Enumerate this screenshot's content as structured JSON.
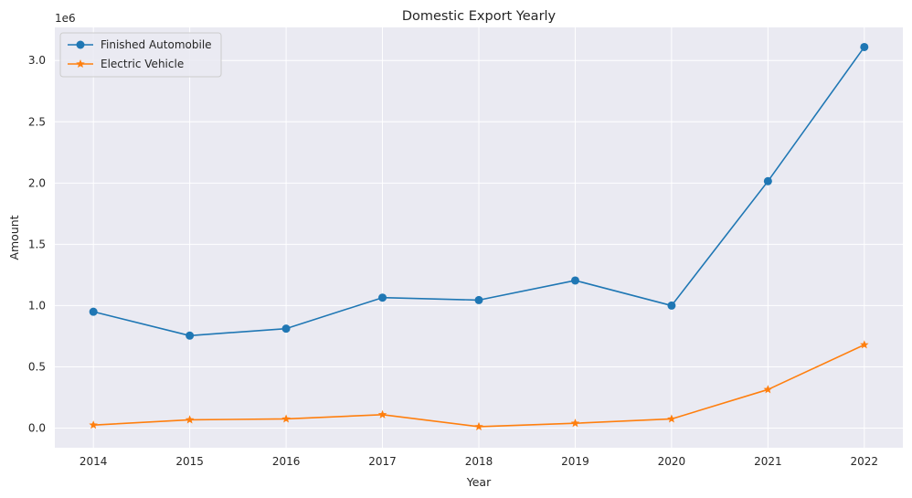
{
  "chart_data": {
    "type": "line",
    "title": "Domestic Export Yearly",
    "xlabel": "Year",
    "ylabel": "Amount",
    "y_offset_label": "1e6",
    "x": [
      2014,
      2015,
      2016,
      2017,
      2018,
      2019,
      2020,
      2021,
      2022
    ],
    "x_tick_labels": [
      "2014",
      "2015",
      "2016",
      "2017",
      "2018",
      "2019",
      "2020",
      "2021",
      "2022"
    ],
    "y_ticks": [
      0.0,
      0.5,
      1.0,
      1.5,
      2.0,
      2.5,
      3.0
    ],
    "y_tick_labels": [
      "0.0",
      "0.5",
      "1.0",
      "1.5",
      "2.0",
      "2.5",
      "3.0"
    ],
    "y_tick_multiplier": 1000000,
    "ylim": [
      -160000,
      3270000
    ],
    "xlim": [
      2013.6,
      2022.4
    ],
    "grid": true,
    "legend_position": "top-left",
    "series": [
      {
        "name": "Finished Automobile",
        "color": "#1f77b4",
        "marker": "circle",
        "values": [
          950000,
          755000,
          812000,
          1065000,
          1045000,
          1205000,
          1000000,
          2015000,
          3110000
        ]
      },
      {
        "name": "Electric Vehicle",
        "color": "#ff7f0e",
        "marker": "star",
        "values": [
          25000,
          68000,
          75000,
          110000,
          12000,
          40000,
          75000,
          315000,
          680000
        ]
      }
    ]
  }
}
